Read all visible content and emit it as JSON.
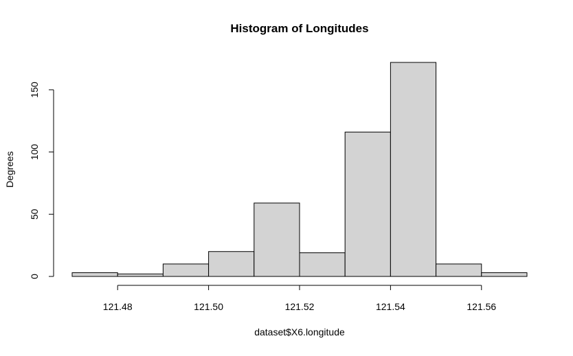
{
  "chart_data": {
    "type": "bar",
    "title": "Histogram of Longitudes",
    "xlabel": "dataset$X6.longitude",
    "ylabel": "Degrees",
    "bins": [
      {
        "x0": 121.47,
        "x1": 121.48,
        "count": 3
      },
      {
        "x0": 121.48,
        "x1": 121.49,
        "count": 2
      },
      {
        "x0": 121.49,
        "x1": 121.5,
        "count": 10
      },
      {
        "x0": 121.5,
        "x1": 121.51,
        "count": 20
      },
      {
        "x0": 121.51,
        "x1": 121.52,
        "count": 59
      },
      {
        "x0": 121.52,
        "x1": 121.53,
        "count": 19
      },
      {
        "x0": 121.53,
        "x1": 121.54,
        "count": 116
      },
      {
        "x0": 121.54,
        "x1": 121.55,
        "count": 172
      },
      {
        "x0": 121.55,
        "x1": 121.56,
        "count": 10
      },
      {
        "x0": 121.56,
        "x1": 121.57,
        "count": 3
      }
    ],
    "xlim": [
      121.47,
      121.57
    ],
    "ylim": [
      0,
      172
    ],
    "x_ticks": [
      {
        "value": 121.48,
        "label": "121.48"
      },
      {
        "value": 121.5,
        "label": "121.50"
      },
      {
        "value": 121.52,
        "label": "121.52"
      },
      {
        "value": 121.54,
        "label": "121.54"
      },
      {
        "value": 121.56,
        "label": "121.56"
      }
    ],
    "y_ticks": [
      {
        "value": 0,
        "label": "0"
      },
      {
        "value": 50,
        "label": "50"
      },
      {
        "value": 100,
        "label": "100"
      },
      {
        "value": 150,
        "label": "150"
      }
    ],
    "grid": false,
    "bar_fill": "#d3d3d3",
    "bar_stroke": "#000000"
  }
}
